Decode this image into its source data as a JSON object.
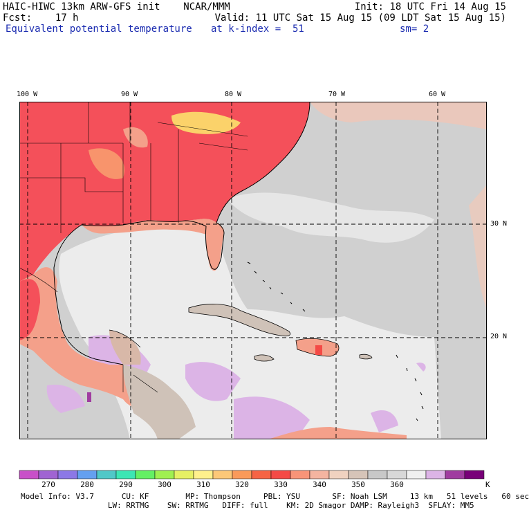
{
  "header": {
    "line1_left": "HAIC-HIWC 13km ARW-GFS init    NCAR/MMM",
    "line1_right": "Init: 18 UTC Fri 14 Aug 15",
    "line2_left": "Fcst:    17 h",
    "line2_right": "Valid: 11 UTC Sat 15 Aug 15 (09 LDT Sat 15 Aug 15)",
    "line3_field": "Equivalent potential temperature",
    "line3_level": "at k-index =  51",
    "line3_smooth": "sm= 2"
  },
  "map": {
    "lon_labels": [
      "100 W",
      "90 W",
      "80 W",
      "70 W",
      "60 W"
    ],
    "lat_labels": [
      "30 N",
      "20 N"
    ],
    "gridlines": "dashed",
    "colors": {
      "land_warm": "#f4505a",
      "land_hot": "#fbd26a",
      "land_mid": "#f4a08a",
      "land_cool": "#d2b4a0",
      "ocean": "#dcdcdc",
      "ocean_light": "#f0f0f0",
      "ocean_cold": "#dcb4e6",
      "coast": "#000000"
    }
  },
  "colorbar": {
    "colors": [
      "#c850c8",
      "#a064d2",
      "#8c78e6",
      "#64a0f0",
      "#50c8c8",
      "#3ce6b4",
      "#64f064",
      "#a0f050",
      "#e6f064",
      "#fff08c",
      "#fcc878",
      "#fa9a5a",
      "#f66444",
      "#f44a46",
      "#f89478",
      "#f4b4a0",
      "#f0d2c0",
      "#d6c4b8",
      "#c8c8c8",
      "#d8d8d8",
      "#f0f0f0",
      "#dcb4e6",
      "#a03ca0",
      "#780078"
    ],
    "tick_labels": [
      "270",
      "280",
      "290",
      "300",
      "310",
      "320",
      "330",
      "340",
      "350",
      "360"
    ],
    "unit": "K"
  },
  "footer": {
    "line1": "Model Info: V3.7      CU: KF        MP: Thompson     PBL: YSU       SF: Noah LSM     13 km   51 levels   60 sec",
    "line2": "                   LW: RRTMG    SW: RRTMG   DIFF: full    KM: 2D Smagor DAMP: Rayleigh3  SFLAY: MM5"
  }
}
